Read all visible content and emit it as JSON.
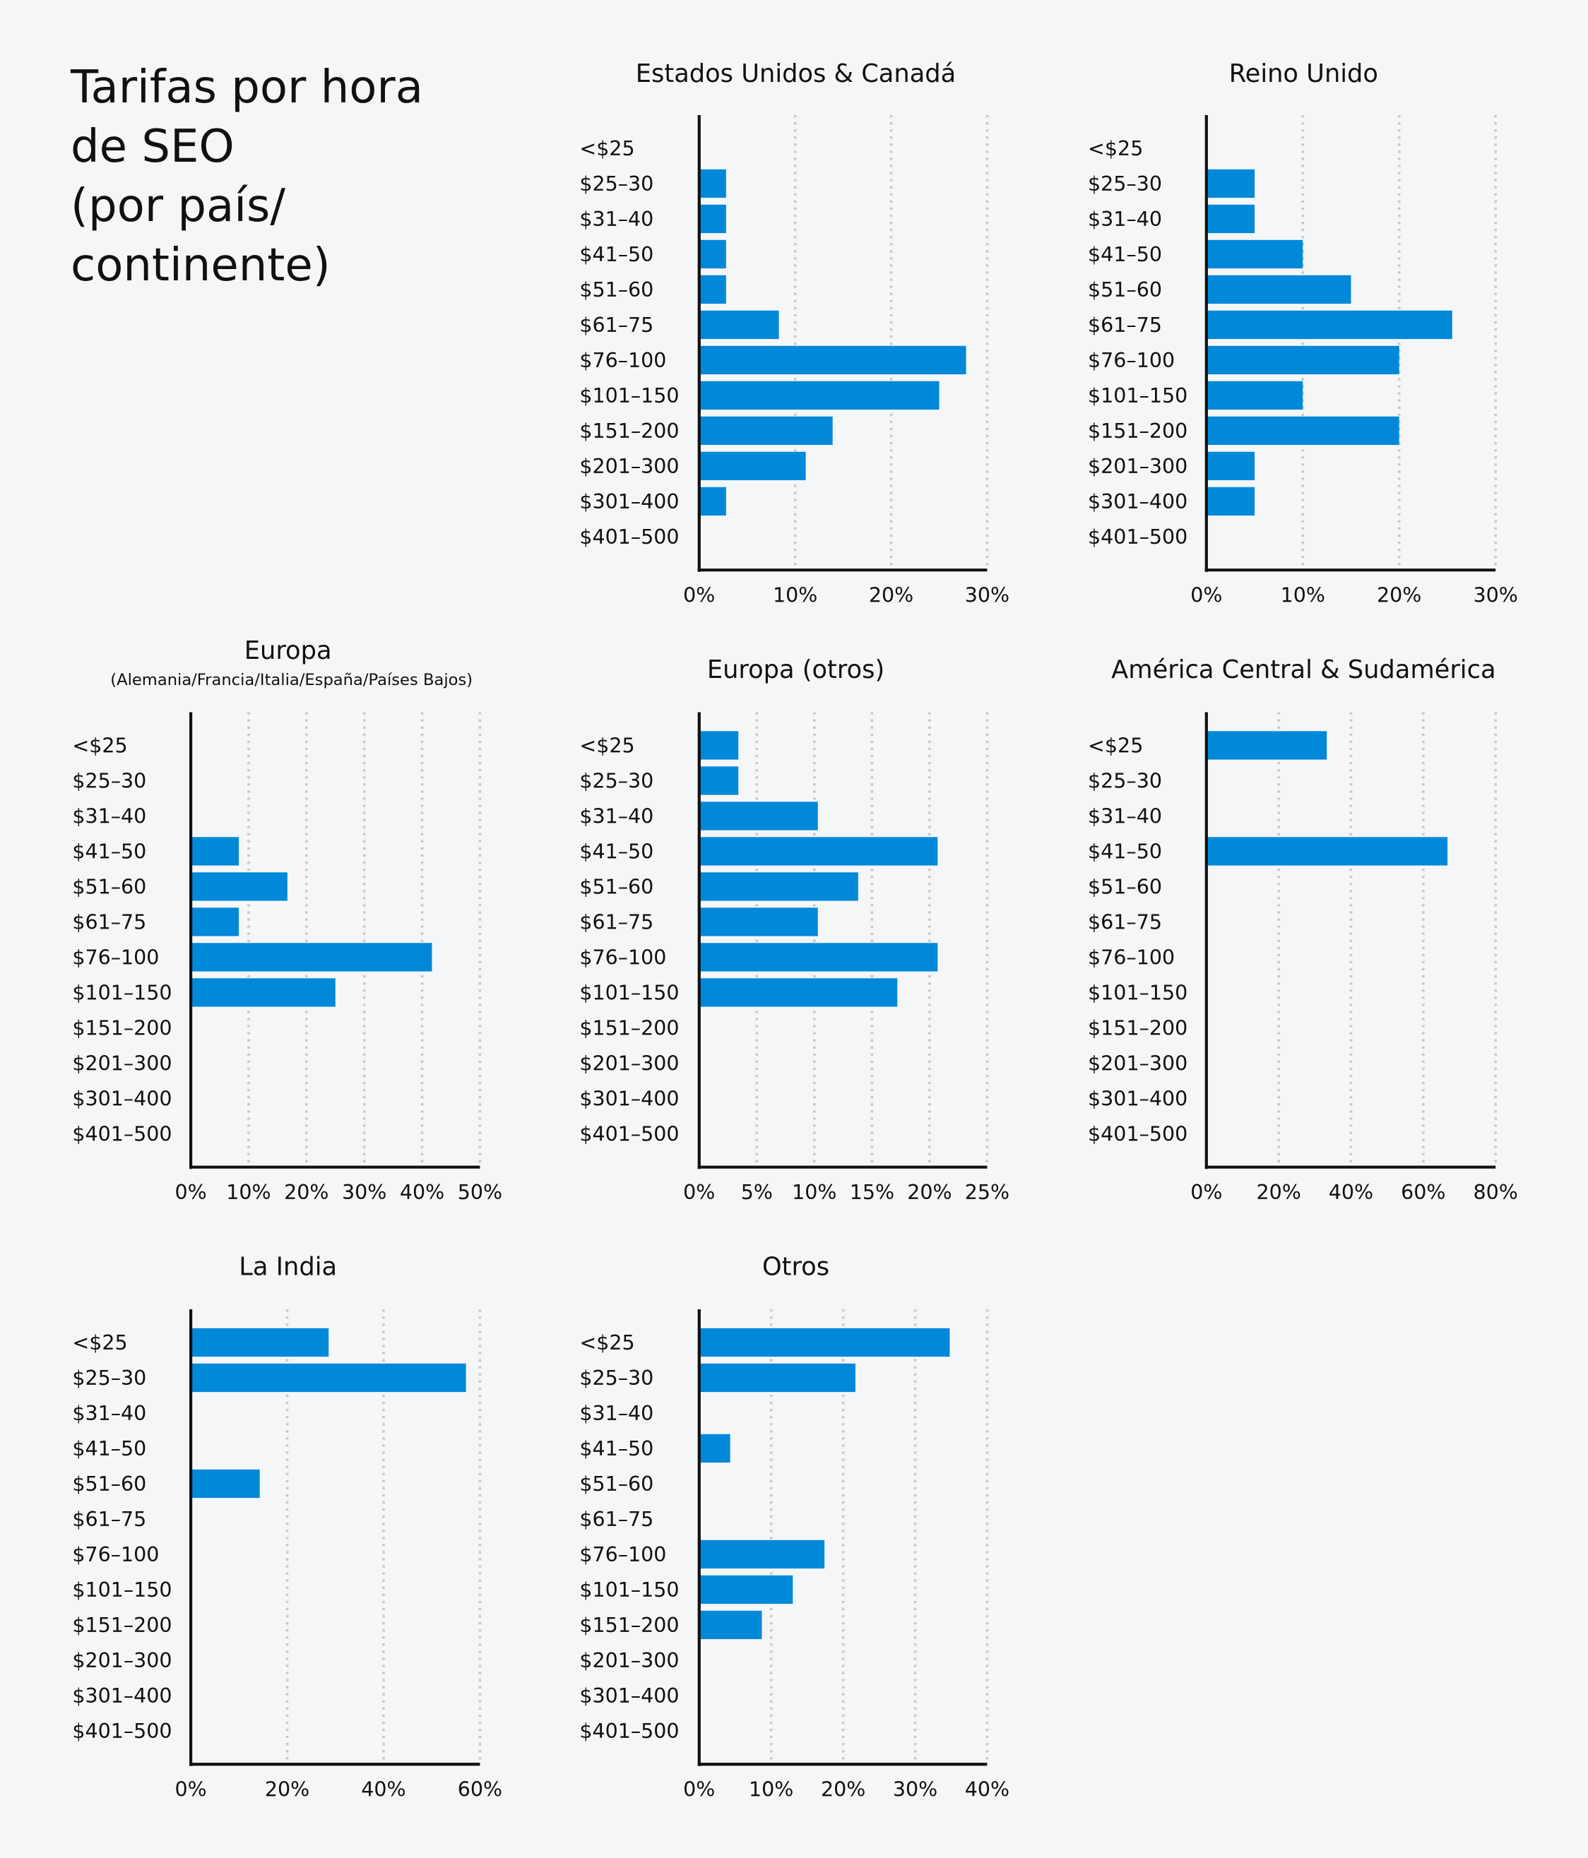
{
  "title": "Tarifas por hora\nde SEO\n(por país/\ncontinente)",
  "colors": {
    "bar": "#0088d9",
    "axis": "#111111",
    "grid": "#c8c8c8",
    "background": "#f5f6f8"
  },
  "chart_data": [
    {
      "type": "bar",
      "orientation": "horizontal",
      "title": "Estados Unidos & Canadá",
      "subtitle": "",
      "categories": [
        "<$25",
        "$25–30",
        "$31–40",
        "$41–50",
        "$51–60",
        "$61–75",
        "$76–100",
        "$101–150",
        "$151–200",
        "$201–300",
        "$301–400",
        "$401–500"
      ],
      "values": [
        0,
        2.8,
        2.8,
        2.8,
        2.8,
        8.3,
        27.8,
        25.0,
        13.9,
        11.1,
        2.8,
        0
      ],
      "xlim": [
        0,
        30
      ],
      "xticks": [
        0,
        10,
        20,
        30
      ],
      "tick_labels": [
        "0%",
        "10%",
        "20%",
        "30%"
      ],
      "grid": true
    },
    {
      "type": "bar",
      "orientation": "horizontal",
      "title": "Reino Unido",
      "subtitle": "",
      "categories": [
        "<$25",
        "$25–30",
        "$31–40",
        "$41–50",
        "$51–60",
        "$61–75",
        "$76–100",
        "$101–150",
        "$151–200",
        "$201–300",
        "$301–400",
        "$401–500"
      ],
      "values": [
        0,
        5,
        5,
        10,
        15,
        25.5,
        20,
        10,
        20,
        5,
        5,
        0
      ],
      "xlim": [
        0,
        30
      ],
      "xticks": [
        0,
        10,
        20,
        30
      ],
      "tick_labels": [
        "0%",
        "10%",
        "20%",
        "30%"
      ],
      "grid": true
    },
    {
      "type": "bar",
      "orientation": "horizontal",
      "title": "Europa",
      "subtitle": "(Alemania/Francia/Italia/España/Países Bajos)",
      "categories": [
        "<$25",
        "$25–30",
        "$31–40",
        "$41–50",
        "$51–60",
        "$61–75",
        "$76–100",
        "$101–150",
        "$151–200",
        "$201–300",
        "$301–400",
        "$401–500"
      ],
      "values": [
        0,
        0,
        0,
        8.3,
        16.7,
        8.3,
        41.7,
        25.0,
        0,
        0,
        0,
        0
      ],
      "xlim": [
        0,
        50
      ],
      "xticks": [
        0,
        10,
        20,
        30,
        40,
        50
      ],
      "tick_labels": [
        "0%",
        "10%",
        "20%",
        "30%",
        "40%",
        "50%"
      ],
      "grid": true
    },
    {
      "type": "bar",
      "orientation": "horizontal",
      "title": "Europa (otros)",
      "subtitle": "",
      "categories": [
        "<$25",
        "$25–30",
        "$31–40",
        "$41–50",
        "$51–60",
        "$61–75",
        "$76–100",
        "$101–150",
        "$151–200",
        "$201–300",
        "$301–400",
        "$401–500"
      ],
      "values": [
        3.4,
        3.4,
        10.3,
        20.7,
        13.8,
        10.3,
        20.7,
        17.2,
        0,
        0,
        0,
        0
      ],
      "xlim": [
        0,
        25
      ],
      "xticks": [
        0,
        5,
        10,
        15,
        20,
        25
      ],
      "tick_labels": [
        "0%",
        "5%",
        "10%",
        "15%",
        "20%",
        "25%"
      ],
      "grid": true
    },
    {
      "type": "bar",
      "orientation": "horizontal",
      "title": "América Central & Sudamérica",
      "subtitle": "",
      "categories": [
        "<$25",
        "$25–30",
        "$31–40",
        "$41–50",
        "$51–60",
        "$61–75",
        "$76–100",
        "$101–150",
        "$151–200",
        "$201–300",
        "$301–400",
        "$401–500"
      ],
      "values": [
        33.3,
        0,
        0,
        66.7,
        0,
        0,
        0,
        0,
        0,
        0,
        0,
        0
      ],
      "xlim": [
        0,
        80
      ],
      "xticks": [
        0,
        20,
        40,
        60,
        80
      ],
      "tick_labels": [
        "0%",
        "20%",
        "40%",
        "60%",
        "80%"
      ],
      "grid": true
    },
    {
      "type": "bar",
      "orientation": "horizontal",
      "title": "La India",
      "subtitle": "",
      "categories": [
        "<$25",
        "$25–30",
        "$31–40",
        "$41–50",
        "$51–60",
        "$61–75",
        "$76–100",
        "$101–150",
        "$151–200",
        "$201–300",
        "$301–400",
        "$401–500"
      ],
      "values": [
        28.6,
        57.1,
        0,
        0,
        14.3,
        0,
        0,
        0,
        0,
        0,
        0,
        0
      ],
      "xlim": [
        0,
        60
      ],
      "xticks": [
        0,
        20,
        40,
        60
      ],
      "tick_labels": [
        "0%",
        "20%",
        "40%",
        "60%"
      ],
      "grid": true
    },
    {
      "type": "bar",
      "orientation": "horizontal",
      "title": "Otros",
      "subtitle": "",
      "categories": [
        "<$25",
        "$25–30",
        "$31–40",
        "$41–50",
        "$51–60",
        "$61–75",
        "$76–100",
        "$101–150",
        "$151–200",
        "$201–300",
        "$301–400",
        "$401–500"
      ],
      "values": [
        34.8,
        21.7,
        0,
        4.3,
        0,
        0,
        17.4,
        13.0,
        8.7,
        0,
        0,
        0
      ],
      "xlim": [
        0,
        40
      ],
      "xticks": [
        0,
        10,
        20,
        30,
        40
      ],
      "tick_labels": [
        "0%",
        "10%",
        "20%",
        "30%",
        "40%"
      ],
      "grid": true
    }
  ]
}
